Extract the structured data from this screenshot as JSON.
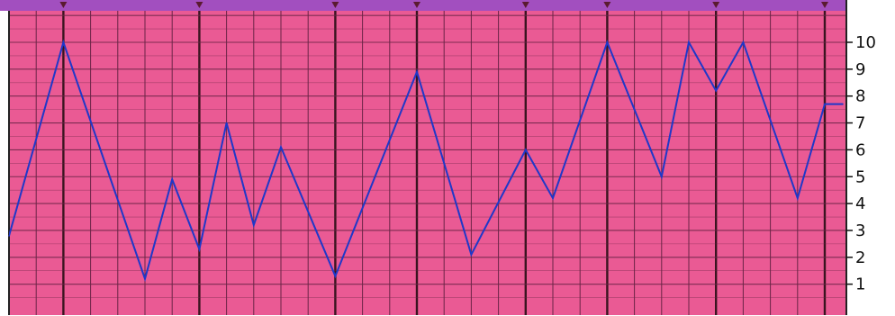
{
  "colors": {
    "top_band": "#a24fbf",
    "paper": "#ea5a94",
    "grid_fine": "#6b2446",
    "grid_bold": "#3a1420",
    "line": "#1f38c8",
    "axis_panel": "#ffffff",
    "marker": "#5a1a30"
  },
  "chart_data": {
    "type": "line",
    "title": "",
    "xlabel": "",
    "ylabel": "",
    "ylim": [
      0,
      11
    ],
    "yticks": [
      "1",
      "2",
      "3",
      "4",
      "5",
      "6",
      "7",
      "8",
      "9",
      "10"
    ],
    "grid": true,
    "x": [
      0,
      2,
      5,
      6,
      7,
      8,
      9,
      10,
      12,
      15,
      17,
      19,
      20,
      22,
      24,
      25,
      26,
      27,
      29,
      30,
      31
    ],
    "series": [
      {
        "values": [
          2.8,
          10,
          1.2,
          4.9,
          2.3,
          7,
          3.2,
          6.1,
          1.3,
          8.9,
          2.1,
          6,
          4.2,
          10,
          5,
          10,
          8.2,
          10,
          4.2,
          7.7,
          7.7
        ]
      }
    ]
  }
}
